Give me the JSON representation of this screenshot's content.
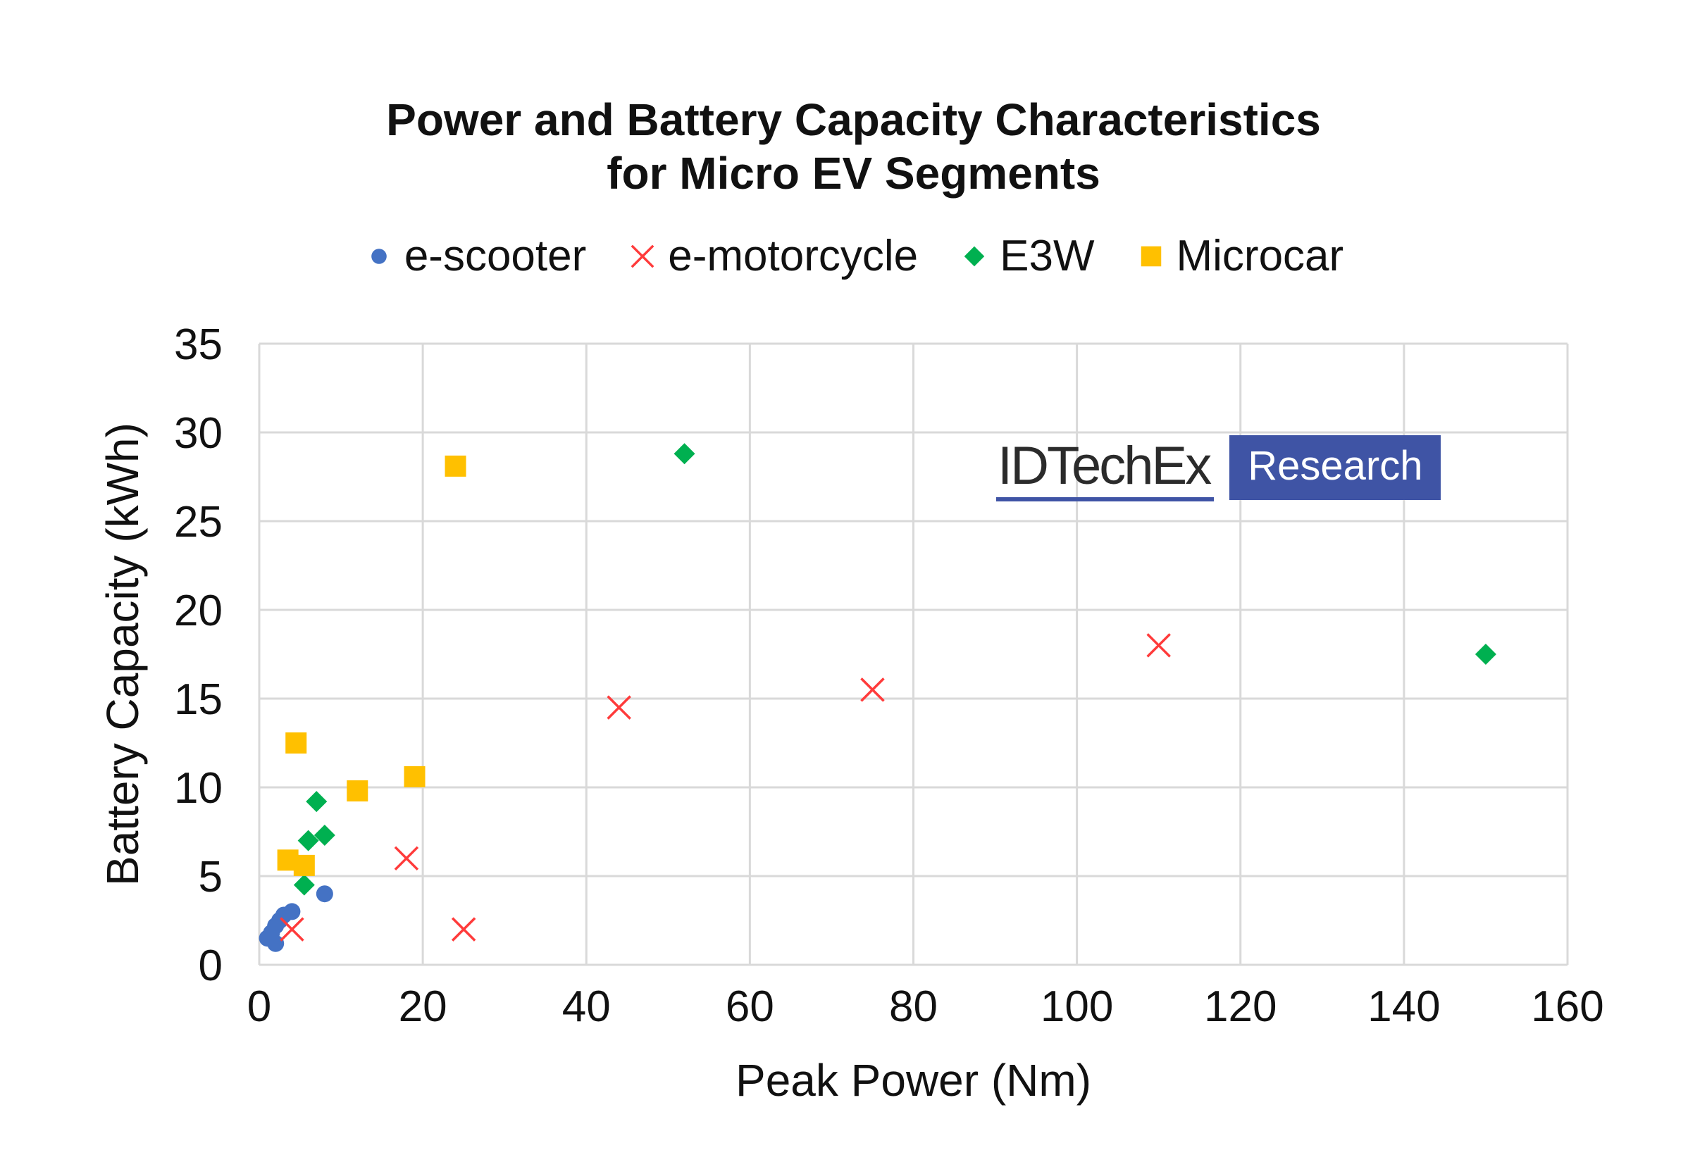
{
  "chart_data": {
    "type": "scatter",
    "title": "Power and Battery Capacity Characteristics",
    "subtitle": "for Micro EV Segments",
    "xlabel": "Peak Power (Nm)",
    "ylabel": "Battery Capacity (kWh)",
    "xlim": [
      0,
      160
    ],
    "ylim": [
      0,
      35
    ],
    "xticks": [
      0,
      20,
      40,
      60,
      80,
      100,
      120,
      140,
      160
    ],
    "yticks": [
      0,
      5,
      10,
      15,
      20,
      25,
      30,
      35
    ],
    "grid": true,
    "legend_position": "top",
    "series": [
      {
        "name": "e-scooter",
        "marker": "circle",
        "color": "#4472c4",
        "points": [
          [
            1,
            1.5
          ],
          [
            1.5,
            1.8
          ],
          [
            2,
            1.2
          ],
          [
            2,
            2.2
          ],
          [
            2.5,
            2.5
          ],
          [
            3,
            2.8
          ],
          [
            4,
            3.0
          ],
          [
            8,
            4.0
          ]
        ]
      },
      {
        "name": "e-motorcycle",
        "marker": "x",
        "color": "#ff3b3b",
        "points": [
          [
            4,
            2.0
          ],
          [
            18,
            6.0
          ],
          [
            25,
            2.0
          ],
          [
            44,
            14.5
          ],
          [
            75,
            15.5
          ],
          [
            110,
            18.0
          ]
        ]
      },
      {
        "name": "E3W",
        "marker": "diamond",
        "color": "#00b050",
        "points": [
          [
            5.5,
            4.5
          ],
          [
            6,
            7.0
          ],
          [
            7,
            9.2
          ],
          [
            8,
            7.3
          ],
          [
            52,
            28.8
          ],
          [
            150,
            17.5
          ]
        ]
      },
      {
        "name": "Microcar",
        "marker": "square",
        "color": "#ffc000",
        "points": [
          [
            3.5,
            5.9
          ],
          [
            4.5,
            12.5
          ],
          [
            5.5,
            5.6
          ],
          [
            12,
            9.8
          ],
          [
            19,
            10.6
          ],
          [
            24,
            28.1
          ]
        ]
      }
    ]
  },
  "logo": {
    "left_text": "IDTechEx",
    "right_text": "Research",
    "color": "#3f54a5"
  }
}
